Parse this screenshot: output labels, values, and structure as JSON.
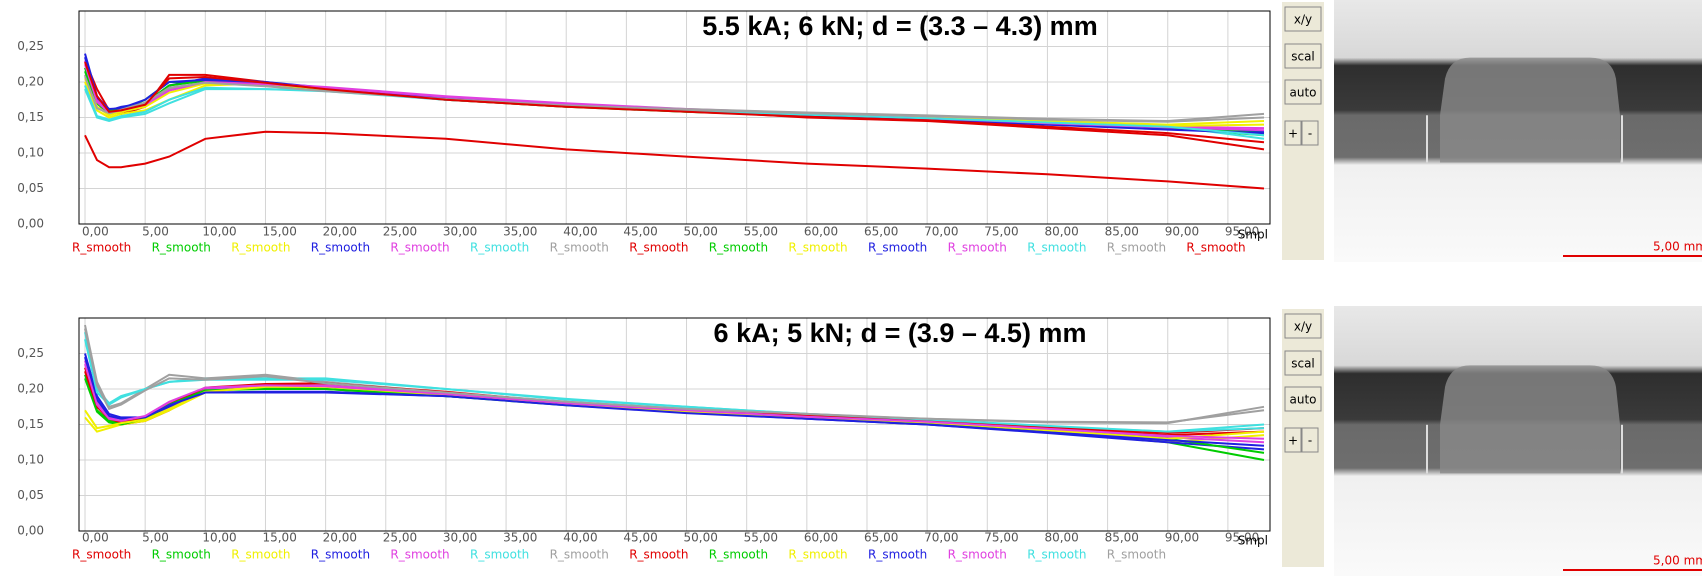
{
  "chart_data": [
    {
      "type": "line",
      "title": "5.5 kA; 6 kN; d = (3.3 – 4.3) mm",
      "x_label": "Smpl",
      "grid": true,
      "xlim": [
        -0.5,
        98.5
      ],
      "ylim": [
        0,
        0.3
      ],
      "xticks": [
        {
          "value": 0,
          "label": "0,00"
        },
        {
          "value": 5,
          "label": "5,00"
        },
        {
          "value": 10,
          "label": "10,00"
        },
        {
          "value": 15,
          "label": "15,00"
        },
        {
          "value": 20,
          "label": "20,00"
        },
        {
          "value": 25,
          "label": "25,00"
        },
        {
          "value": 30,
          "label": "30,00"
        },
        {
          "value": 35,
          "label": "35,00"
        },
        {
          "value": 40,
          "label": "40,00"
        },
        {
          "value": 45,
          "label": "45,00"
        },
        {
          "value": 50,
          "label": "50,00"
        },
        {
          "value": 55,
          "label": "55,00"
        },
        {
          "value": 60,
          "label": "60,00"
        },
        {
          "value": 65,
          "label": "65,00"
        },
        {
          "value": 70,
          "label": "70,00"
        },
        {
          "value": 75,
          "label": "75,00"
        },
        {
          "value": 80,
          "label": "80,00"
        },
        {
          "value": 85,
          "label": "85,00"
        },
        {
          "value": 90,
          "label": "90,00"
        },
        {
          "value": 95,
          "label": "95,00"
        }
      ],
      "yticks": [
        {
          "value": 0,
          "label": "0,00"
        },
        {
          "value": 0.05,
          "label": "0,05"
        },
        {
          "value": 0.1,
          "label": "0,10"
        },
        {
          "value": 0.15,
          "label": "0,15"
        },
        {
          "value": 0.2,
          "label": "0,20"
        },
        {
          "value": 0.25,
          "label": "0,25"
        }
      ],
      "x": [
        0,
        1,
        2,
        3,
        5,
        7,
        10,
        15,
        20,
        30,
        40,
        50,
        60,
        70,
        80,
        90,
        98
      ],
      "series": [
        {
          "name": "R_smooth",
          "color": "#e00000",
          "values": [
            0.23,
            0.19,
            0.16,
            0.155,
            0.165,
            0.21,
            0.21,
            0.2,
            0.19,
            0.175,
            0.165,
            0.16,
            0.15,
            0.145,
            0.135,
            0.125,
            0.105
          ]
        },
        {
          "name": "R_smooth",
          "color": "#00cc00",
          "values": [
            0.22,
            0.17,
            0.155,
            0.16,
            0.175,
            0.2,
            0.2,
            0.195,
            0.19,
            0.175,
            0.165,
            0.158,
            0.152,
            0.148,
            0.142,
            0.135,
            0.125
          ]
        },
        {
          "name": "R_smooth",
          "color": "#f0f000",
          "values": [
            0.2,
            0.16,
            0.15,
            0.155,
            0.16,
            0.175,
            0.195,
            0.198,
            0.19,
            0.178,
            0.168,
            0.16,
            0.155,
            0.15,
            0.145,
            0.14,
            0.145
          ]
        },
        {
          "name": "R_smooth",
          "color": "#2020e0",
          "values": [
            0.24,
            0.18,
            0.16,
            0.165,
            0.17,
            0.195,
            0.205,
            0.2,
            0.192,
            0.178,
            0.168,
            0.16,
            0.154,
            0.148,
            0.14,
            0.135,
            0.13
          ]
        },
        {
          "name": "R_smooth",
          "color": "#e040e0",
          "values": [
            0.23,
            0.175,
            0.158,
            0.16,
            0.17,
            0.19,
            0.2,
            0.198,
            0.193,
            0.18,
            0.17,
            0.162,
            0.156,
            0.15,
            0.143,
            0.137,
            0.135
          ]
        },
        {
          "name": "R_smooth",
          "color": "#40e0e0",
          "values": [
            0.19,
            0.15,
            0.145,
            0.15,
            0.155,
            0.17,
            0.19,
            0.19,
            0.188,
            0.175,
            0.167,
            0.16,
            0.155,
            0.15,
            0.144,
            0.138,
            0.12
          ]
        },
        {
          "name": "R_smooth",
          "color": "#a0a0a0",
          "values": [
            0.21,
            0.165,
            0.155,
            0.16,
            0.17,
            0.19,
            0.2,
            0.195,
            0.188,
            0.177,
            0.168,
            0.162,
            0.157,
            0.153,
            0.148,
            0.145,
            0.155
          ]
        },
        {
          "name": "R_smooth",
          "color": "#e00000",
          "values": [
            0.125,
            0.09,
            0.08,
            0.08,
            0.085,
            0.095,
            0.12,
            0.13,
            0.128,
            0.12,
            0.105,
            0.095,
            0.085,
            0.078,
            0.07,
            0.06,
            0.05
          ]
        },
        {
          "name": "R_smooth",
          "color": "#00cc00",
          "values": [
            0.215,
            0.17,
            0.16,
            0.162,
            0.17,
            0.195,
            0.202,
            0.197,
            0.19,
            0.176,
            0.166,
            0.158,
            0.153,
            0.149,
            0.143,
            0.136,
            0.128
          ]
        },
        {
          "name": "R_smooth",
          "color": "#f0f000",
          "values": [
            0.205,
            0.165,
            0.153,
            0.158,
            0.165,
            0.185,
            0.198,
            0.197,
            0.19,
            0.177,
            0.167,
            0.16,
            0.155,
            0.15,
            0.144,
            0.138,
            0.14
          ]
        },
        {
          "name": "R_smooth",
          "color": "#2020e0",
          "values": [
            0.235,
            0.178,
            0.162,
            0.163,
            0.175,
            0.2,
            0.203,
            0.199,
            0.191,
            0.177,
            0.167,
            0.159,
            0.153,
            0.147,
            0.14,
            0.133,
            0.128
          ]
        },
        {
          "name": "R_smooth",
          "color": "#e040e0",
          "values": [
            0.225,
            0.172,
            0.157,
            0.16,
            0.168,
            0.188,
            0.2,
            0.197,
            0.192,
            0.179,
            0.169,
            0.161,
            0.155,
            0.149,
            0.142,
            0.136,
            0.132
          ]
        },
        {
          "name": "R_smooth",
          "color": "#40e0e0",
          "values": [
            0.195,
            0.152,
            0.147,
            0.152,
            0.158,
            0.175,
            0.192,
            0.19,
            0.187,
            0.175,
            0.166,
            0.159,
            0.154,
            0.149,
            0.143,
            0.137,
            0.125
          ]
        },
        {
          "name": "R_smooth",
          "color": "#a0a0a0",
          "values": [
            0.208,
            0.163,
            0.156,
            0.161,
            0.171,
            0.192,
            0.199,
            0.194,
            0.187,
            0.176,
            0.167,
            0.161,
            0.156,
            0.152,
            0.147,
            0.144,
            0.15
          ]
        },
        {
          "name": "R_smooth",
          "color": "#e00000",
          "values": [
            0.228,
            0.18,
            0.158,
            0.16,
            0.168,
            0.205,
            0.207,
            0.199,
            0.19,
            0.175,
            0.165,
            0.158,
            0.151,
            0.146,
            0.137,
            0.128,
            0.115
          ]
        }
      ]
    },
    {
      "type": "line",
      "title": "6 kA; 5 kN; d = (3.9 – 4.5) mm",
      "x_label": "Smpl",
      "grid": true,
      "xlim": [
        -0.5,
        98.5
      ],
      "ylim": [
        0,
        0.3
      ],
      "xticks": [
        {
          "value": 0,
          "label": "0,00"
        },
        {
          "value": 5,
          "label": "5,00"
        },
        {
          "value": 10,
          "label": "10,00"
        },
        {
          "value": 15,
          "label": "15,00"
        },
        {
          "value": 20,
          "label": "20,00"
        },
        {
          "value": 25,
          "label": "25,00"
        },
        {
          "value": 30,
          "label": "30,00"
        },
        {
          "value": 35,
          "label": "35,00"
        },
        {
          "value": 40,
          "label": "40,00"
        },
        {
          "value": 45,
          "label": "45,00"
        },
        {
          "value": 50,
          "label": "50,00"
        },
        {
          "value": 55,
          "label": "55,00"
        },
        {
          "value": 60,
          "label": "60,00"
        },
        {
          "value": 65,
          "label": "65,00"
        },
        {
          "value": 70,
          "label": "70,00"
        },
        {
          "value": 75,
          "label": "75,00"
        },
        {
          "value": 80,
          "label": "80,00"
        },
        {
          "value": 85,
          "label": "85,00"
        },
        {
          "value": 90,
          "label": "90,00"
        },
        {
          "value": 95,
          "label": "95,00"
        }
      ],
      "yticks": [
        {
          "value": 0,
          "label": "0,00"
        },
        {
          "value": 0.05,
          "label": "0,05"
        },
        {
          "value": 0.1,
          "label": "0,10"
        },
        {
          "value": 0.15,
          "label": "0,15"
        },
        {
          "value": 0.2,
          "label": "0,20"
        },
        {
          "value": 0.25,
          "label": "0,25"
        }
      ],
      "x": [
        0,
        1,
        2,
        3,
        5,
        7,
        10,
        15,
        20,
        30,
        40,
        50,
        60,
        70,
        80,
        90,
        98
      ],
      "series": [
        {
          "name": "R_smooth",
          "color": "#e00000",
          "values": [
            0.23,
            0.18,
            0.155,
            0.15,
            0.155,
            0.17,
            0.2,
            0.205,
            0.205,
            0.195,
            0.18,
            0.17,
            0.162,
            0.155,
            0.145,
            0.135,
            0.14
          ]
        },
        {
          "name": "R_smooth",
          "color": "#00cc00",
          "values": [
            0.22,
            0.17,
            0.155,
            0.152,
            0.16,
            0.18,
            0.2,
            0.202,
            0.2,
            0.19,
            0.178,
            0.168,
            0.16,
            0.153,
            0.14,
            0.125,
            0.1
          ]
        },
        {
          "name": "R_smooth",
          "color": "#f0f000",
          "values": [
            0.16,
            0.14,
            0.145,
            0.15,
            0.155,
            0.17,
            0.195,
            0.205,
            0.205,
            0.193,
            0.178,
            0.168,
            0.16,
            0.152,
            0.14,
            0.125,
            0.135
          ]
        },
        {
          "name": "R_smooth",
          "color": "#2020e0",
          "values": [
            0.25,
            0.19,
            0.165,
            0.16,
            0.16,
            0.175,
            0.195,
            0.195,
            0.195,
            0.19,
            0.178,
            0.167,
            0.158,
            0.15,
            0.138,
            0.125,
            0.115
          ]
        },
        {
          "name": "R_smooth",
          "color": "#e040e0",
          "values": [
            0.24,
            0.18,
            0.16,
            0.155,
            0.16,
            0.18,
            0.2,
            0.205,
            0.205,
            0.193,
            0.18,
            0.17,
            0.162,
            0.155,
            0.143,
            0.132,
            0.125
          ]
        },
        {
          "name": "R_smooth",
          "color": "#40e0e0",
          "values": [
            0.28,
            0.2,
            0.18,
            0.19,
            0.2,
            0.21,
            0.215,
            0.215,
            0.215,
            0.2,
            0.185,
            0.175,
            0.165,
            0.157,
            0.147,
            0.14,
            0.15
          ]
        },
        {
          "name": "R_smooth",
          "color": "#a0a0a0",
          "values": [
            0.29,
            0.21,
            0.175,
            0.18,
            0.2,
            0.22,
            0.215,
            0.22,
            0.21,
            0.195,
            0.182,
            0.172,
            0.164,
            0.158,
            0.153,
            0.152,
            0.175
          ]
        },
        {
          "name": "R_smooth",
          "color": "#e00000",
          "values": [
            0.225,
            0.175,
            0.158,
            0.153,
            0.158,
            0.178,
            0.202,
            0.207,
            0.208,
            0.196,
            0.181,
            0.171,
            0.163,
            0.155,
            0.146,
            0.138,
            0.145
          ]
        },
        {
          "name": "R_smooth",
          "color": "#00cc00",
          "values": [
            0.215,
            0.168,
            0.153,
            0.15,
            0.158,
            0.178,
            0.198,
            0.2,
            0.2,
            0.19,
            0.177,
            0.167,
            0.159,
            0.152,
            0.142,
            0.13,
            0.11
          ]
        },
        {
          "name": "R_smooth",
          "color": "#f0f000",
          "values": [
            0.17,
            0.145,
            0.148,
            0.152,
            0.157,
            0.172,
            0.196,
            0.203,
            0.203,
            0.192,
            0.178,
            0.168,
            0.16,
            0.153,
            0.142,
            0.13,
            0.14
          ]
        },
        {
          "name": "R_smooth",
          "color": "#2020e0",
          "values": [
            0.245,
            0.185,
            0.162,
            0.158,
            0.16,
            0.177,
            0.195,
            0.196,
            0.196,
            0.19,
            0.177,
            0.166,
            0.158,
            0.15,
            0.139,
            0.128,
            0.12
          ]
        },
        {
          "name": "R_smooth",
          "color": "#e040e0",
          "values": [
            0.235,
            0.178,
            0.158,
            0.155,
            0.162,
            0.182,
            0.202,
            0.205,
            0.204,
            0.193,
            0.18,
            0.17,
            0.161,
            0.154,
            0.144,
            0.134,
            0.13
          ]
        },
        {
          "name": "R_smooth",
          "color": "#40e0e0",
          "values": [
            0.27,
            0.195,
            0.178,
            0.188,
            0.2,
            0.21,
            0.213,
            0.213,
            0.213,
            0.2,
            0.186,
            0.175,
            0.165,
            0.157,
            0.148,
            0.14,
            0.145
          ]
        },
        {
          "name": "R_smooth",
          "color": "#a0a0a0",
          "values": [
            0.285,
            0.205,
            0.172,
            0.178,
            0.198,
            0.215,
            0.213,
            0.218,
            0.208,
            0.195,
            0.182,
            0.172,
            0.165,
            0.158,
            0.154,
            0.153,
            0.17
          ]
        }
      ]
    }
  ],
  "toolbars": [
    {
      "buttons": [
        "x/y",
        "scal",
        "auto",
        "+",
        "-"
      ]
    },
    {
      "buttons": [
        "x/y",
        "scal",
        "auto",
        "+",
        "-"
      ]
    }
  ],
  "micrographs": [
    {
      "scale_label": "5,00 mm"
    },
    {
      "scale_label": "5,00 mm"
    }
  ]
}
